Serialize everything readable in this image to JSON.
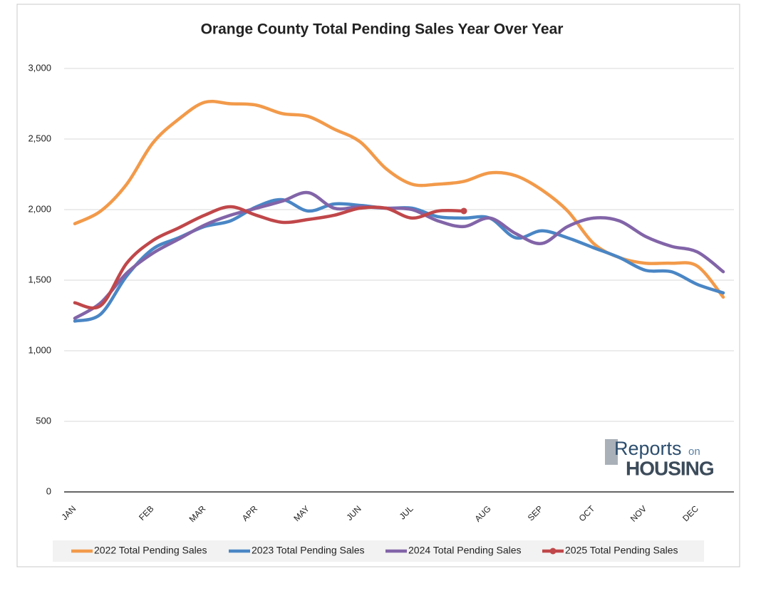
{
  "chart_data": {
    "type": "line",
    "title": "Orange County Total Pending Sales Year Over Year",
    "categories": [
      "JAN",
      null,
      null,
      "FEB",
      null,
      "MAR",
      null,
      "APR",
      null,
      "MAY",
      null,
      "JUN",
      null,
      "JUL",
      null,
      null,
      "AUG",
      null,
      "SEP",
      null,
      "OCT",
      null,
      "NOV",
      null,
      "DEC",
      null
    ],
    "series": [
      {
        "name": "2022 Total Pending Sales",
        "color": "#f29a4a",
        "values": [
          1900,
          1990,
          2180,
          2470,
          2640,
          2760,
          2750,
          2740,
          2680,
          2660,
          2570,
          2480,
          2290,
          2180,
          2180,
          2200,
          2260,
          2240,
          2140,
          1990,
          1760,
          1660,
          1620,
          1620,
          1600,
          1380
        ]
      },
      {
        "name": "2023 Total Pending Sales",
        "color": "#4a86c5",
        "values": [
          1210,
          1260,
          1530,
          1720,
          1800,
          1880,
          1920,
          2020,
          2070,
          1990,
          2040,
          2030,
          2010,
          2010,
          1950,
          1940,
          1940,
          1800,
          1850,
          1800,
          1730,
          1660,
          1570,
          1560,
          1470,
          1410
        ]
      },
      {
        "name": "2024 Total Pending Sales",
        "color": "#8264a8",
        "values": [
          1230,
          1340,
          1550,
          1690,
          1790,
          1890,
          1960,
          2010,
          2060,
          2120,
          2010,
          2020,
          2010,
          2000,
          1920,
          1880,
          1940,
          1830,
          1760,
          1880,
          1940,
          1920,
          1810,
          1740,
          1700,
          1560
        ]
      },
      {
        "name": "2025 Total Pending Sales",
        "color": "#c0474a",
        "marker": "end",
        "values": [
          1340,
          1320,
          1620,
          1780,
          1870,
          1960,
          2020,
          1960,
          1910,
          1930,
          1960,
          2010,
          2010,
          1940,
          1990,
          1990,
          null,
          null,
          null,
          null,
          null,
          null,
          null,
          null,
          null,
          null
        ]
      }
    ],
    "ylim": [
      0,
      3000
    ],
    "yticks": [
      0,
      500,
      {
        "value": 1000,
        "label": "1,000"
      },
      {
        "value": 1500,
        "label": "1,500"
      },
      {
        "value": 2000,
        "label": "2,000"
      },
      {
        "value": 2500,
        "label": "2,500"
      },
      {
        "value": 3000,
        "label": "3,000"
      }
    ],
    "grid": true,
    "legend": "bottom",
    "logo": [
      "Reports",
      "on",
      "HOUSING"
    ]
  }
}
